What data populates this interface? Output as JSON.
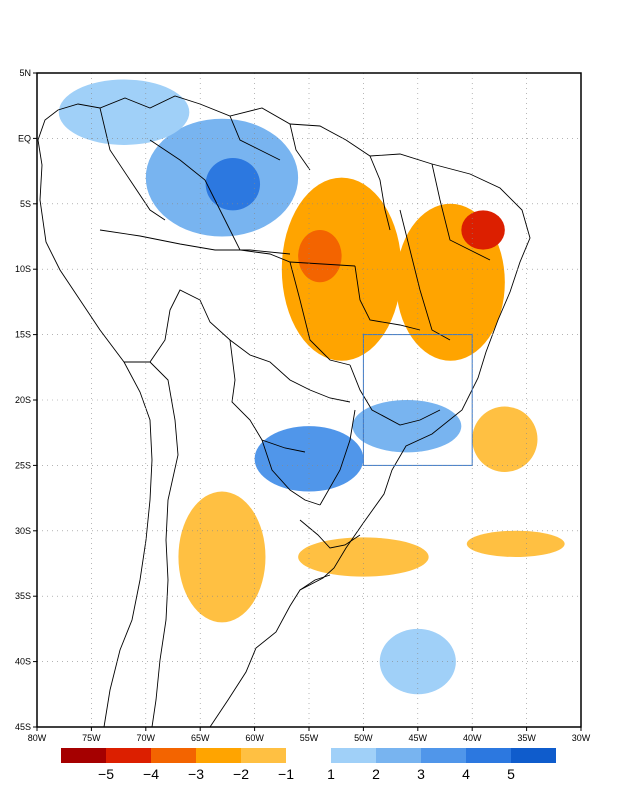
{
  "map": {
    "x_axis": {
      "min": -80,
      "max": -30,
      "step": 5,
      "labels": [
        "80W",
        "75W",
        "70W",
        "65W",
        "60W",
        "55W",
        "50W",
        "45W",
        "40W",
        "35W",
        "30W"
      ]
    },
    "y_axis": {
      "min": -45,
      "max": 5,
      "step": 5,
      "labels": [
        "5N",
        "EQ",
        "5S",
        "10S",
        "15S",
        "20S",
        "25S",
        "30S",
        "35S",
        "40S",
        "45S"
      ]
    },
    "grid": "dotted",
    "highlight_box": {
      "lon_min": -50,
      "lon_max": -40,
      "lat_min": -25,
      "lat_max": -15,
      "color": "#3a78c8"
    }
  },
  "legend": {
    "negative": [
      {
        "label": "−5",
        "color": "#a50000"
      },
      {
        "label": "−4",
        "color": "#dc1f00"
      },
      {
        "label": "−3",
        "color": "#f36400"
      },
      {
        "label": "−2",
        "color": "#ffa400"
      },
      {
        "label": "−1",
        "color": "#ffc042"
      }
    ],
    "positive": [
      {
        "label": "1",
        "color": "#a0d0f8"
      },
      {
        "label": "2",
        "color": "#78b4f0"
      },
      {
        "label": "3",
        "color": "#5096ea"
      },
      {
        "label": "4",
        "color": "#2c78e0"
      },
      {
        "label": "5",
        "color": "#0f5ccc"
      }
    ]
  },
  "anomalies": [
    {
      "name": "amazon-west-positive",
      "sign": "positive",
      "level": 2,
      "lon": -63,
      "lat": -3,
      "rx": 7,
      "ry": 4.5
    },
    {
      "name": "amazon-core-positive",
      "sign": "positive",
      "level": 4,
      "lon": -62,
      "lat": -3.5,
      "rx": 2.5,
      "ry": 2
    },
    {
      "name": "northwest-positive",
      "sign": "positive",
      "level": 1,
      "lon": -72,
      "lat": 2,
      "rx": 6,
      "ry": 2.5
    },
    {
      "name": "southeast-positive",
      "sign": "positive",
      "level": 2,
      "lon": -46,
      "lat": -22,
      "rx": 5,
      "ry": 2
    },
    {
      "name": "parana-positive",
      "sign": "positive",
      "level": 3,
      "lon": -55,
      "lat": -24.5,
      "rx": 5,
      "ry": 2.5
    },
    {
      "name": "south-atlantic-positive",
      "sign": "positive",
      "level": 1,
      "lon": -45,
      "lat": -40,
      "rx": 3.5,
      "ry": 2.5
    },
    {
      "name": "central-brazil-negative",
      "sign": "negative",
      "level": 2,
      "lon": -52,
      "lat": -10,
      "rx": 5.5,
      "ry": 7
    },
    {
      "name": "central-core-negative",
      "sign": "negative",
      "level": 3,
      "lon": -54,
      "lat": -9,
      "rx": 2,
      "ry": 2
    },
    {
      "name": "northeast-negative",
      "sign": "negative",
      "level": 2,
      "lon": -42,
      "lat": -11,
      "rx": 5,
      "ry": 6
    },
    {
      "name": "northeast-core-negative",
      "sign": "negative",
      "level": 4,
      "lon": -39,
      "lat": -7,
      "rx": 2,
      "ry": 1.5
    },
    {
      "name": "argentina-negative",
      "sign": "negative",
      "level": 1,
      "lon": -63,
      "lat": -32,
      "rx": 4,
      "ry": 5
    },
    {
      "name": "uruguay-negative",
      "sign": "negative",
      "level": 1,
      "lon": -50,
      "lat": -32,
      "rx": 6,
      "ry": 1.5
    },
    {
      "name": "atlantic-negative",
      "sign": "negative",
      "level": 1,
      "lon": -37,
      "lat": -23,
      "rx": 3,
      "ry": 2.5
    },
    {
      "name": "south-atlantic-negative",
      "sign": "negative",
      "level": 1,
      "lon": -36,
      "lat": -31,
      "rx": 4.5,
      "ry": 1
    }
  ]
}
